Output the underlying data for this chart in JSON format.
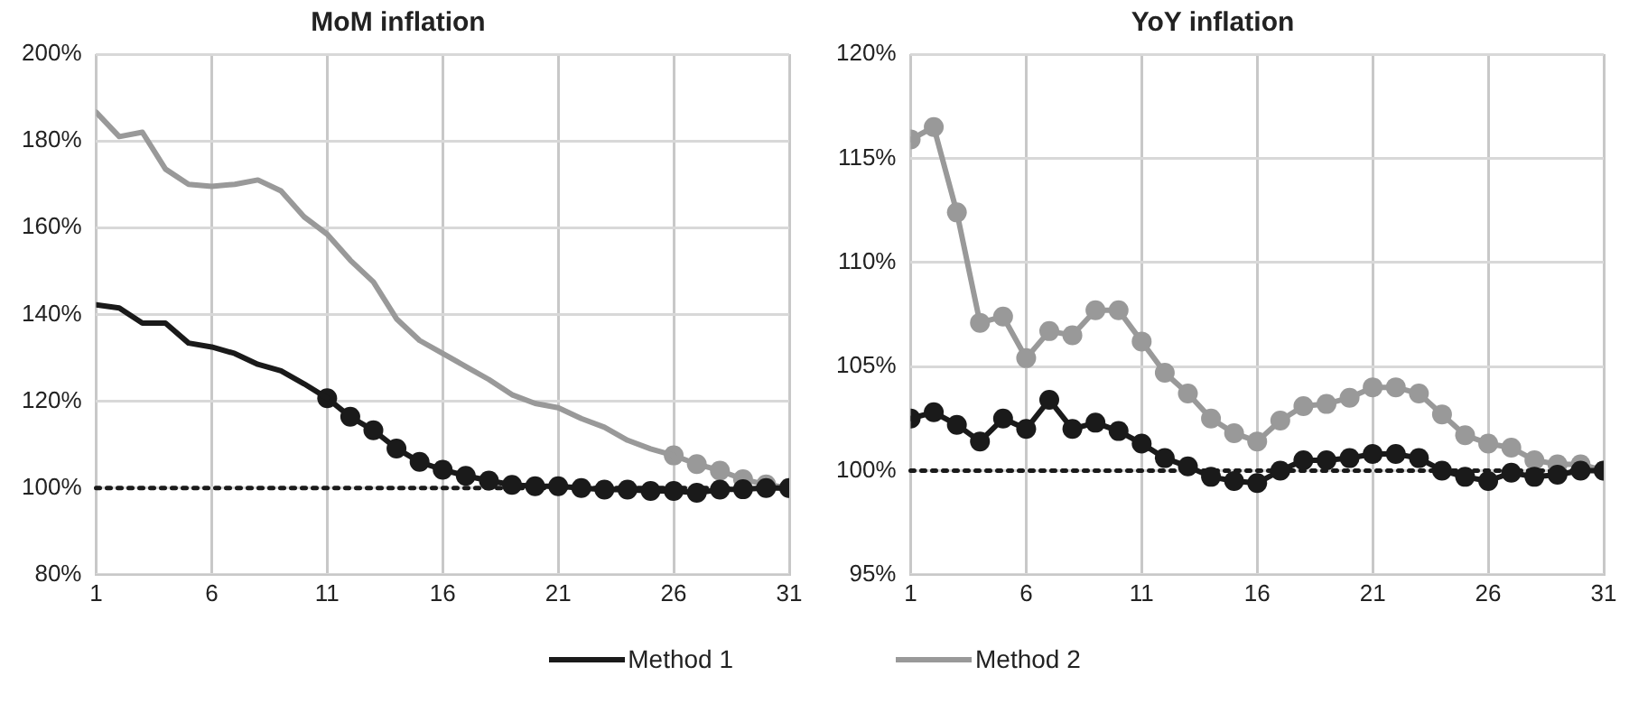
{
  "chart_data": [
    {
      "type": "line",
      "title": "MoM inflation",
      "x": [
        1,
        2,
        3,
        4,
        5,
        6,
        7,
        8,
        9,
        10,
        11,
        12,
        13,
        14,
        15,
        16,
        17,
        18,
        19,
        20,
        21,
        22,
        23,
        24,
        25,
        26,
        27,
        28,
        29,
        30,
        31
      ],
      "xlim": [
        1,
        31
      ],
      "xticks": [
        1,
        6,
        11,
        16,
        21,
        26,
        31
      ],
      "ylim": [
        80,
        200
      ],
      "yticks": [
        {
          "value": 80,
          "label": "80%"
        },
        {
          "value": 100,
          "label": "100%"
        },
        {
          "value": 120,
          "label": "120%"
        },
        {
          "value": 140,
          "label": "140%"
        },
        {
          "value": 160,
          "label": "160%"
        },
        {
          "value": 180,
          "label": "180%"
        },
        {
          "value": 200,
          "label": "200%"
        }
      ],
      "grid": true,
      "legend": "bottom",
      "line_style": "solid",
      "ref_lines": [
        {
          "axis": "y",
          "value": 100,
          "color": "#1a1a1a",
          "line_style": "dotted"
        }
      ],
      "series": [
        {
          "name": "Method 1",
          "color": "#1a1a1a",
          "marker": "none",
          "values": [
            142.2,
            141.5,
            138,
            138,
            133.4,
            132.5,
            131,
            128.5,
            127,
            124,
            120.7,
            null,
            null,
            null,
            null,
            null,
            null,
            null,
            null,
            null,
            null,
            null,
            null,
            null,
            null,
            null,
            null,
            null,
            null,
            null,
            null
          ]
        },
        {
          "color": "#1a1a1a",
          "marker": "circle",
          "values": [
            null,
            null,
            null,
            null,
            null,
            null,
            null,
            null,
            null,
            null,
            120.7,
            116.4,
            113.3,
            109.1,
            106,
            104.2,
            102.8,
            101.7,
            100.7,
            100.4,
            100.4,
            100,
            99.6,
            99.6,
            99.3,
            99.3,
            98.9,
            99.6,
            99.7,
            100,
            100
          ]
        },
        {
          "name": "Method 2",
          "color": "#999999",
          "marker": "none",
          "values": [
            186.6,
            181,
            182,
            173.5,
            170,
            169.5,
            170,
            171,
            168.5,
            162.5,
            158.5,
            152.5,
            147.5,
            139,
            134,
            131,
            128,
            125,
            121.5,
            119.5,
            118.5,
            116,
            114,
            111,
            109,
            107.5,
            null,
            null,
            null,
            null,
            null
          ]
        },
        {
          "color": "#999999",
          "marker": "circle",
          "values": [
            null,
            null,
            null,
            null,
            null,
            null,
            null,
            null,
            null,
            null,
            null,
            null,
            null,
            null,
            null,
            null,
            null,
            null,
            null,
            null,
            null,
            null,
            null,
            null,
            null,
            107.5,
            105.5,
            104,
            102,
            100.8,
            100
          ]
        }
      ]
    },
    {
      "type": "line",
      "title": "YoY inflation",
      "x": [
        1,
        2,
        3,
        4,
        5,
        6,
        7,
        8,
        9,
        10,
        11,
        12,
        13,
        14,
        15,
        16,
        17,
        18,
        19,
        20,
        21,
        22,
        23,
        24,
        25,
        26,
        27,
        28,
        29,
        30,
        31
      ],
      "xlim": [
        1,
        31
      ],
      "xticks": [
        1,
        6,
        11,
        16,
        21,
        26,
        31
      ],
      "ylim": [
        95,
        120
      ],
      "yticks": [
        {
          "value": 95,
          "label": "95%"
        },
        {
          "value": 100,
          "label": "100%"
        },
        {
          "value": 105,
          "label": "105%"
        },
        {
          "value": 110,
          "label": "110%"
        },
        {
          "value": 115,
          "label": "115%"
        },
        {
          "value": 120,
          "label": "120%"
        }
      ],
      "grid": true,
      "legend": "bottom",
      "line_style": "solid",
      "ref_lines": [
        {
          "axis": "y",
          "value": 100,
          "color": "#1a1a1a",
          "line_style": "dotted"
        }
      ],
      "series": [
        {
          "name": "Method 1",
          "color": "#1a1a1a",
          "marker": "circle",
          "values": [
            102.5,
            102.8,
            102.2,
            101.4,
            102.5,
            102,
            103.4,
            102,
            102.3,
            101.9,
            101.3,
            100.6,
            100.2,
            99.7,
            99.5,
            99.4,
            100,
            100.5,
            100.5,
            100.6,
            100.8,
            100.8,
            100.6,
            100,
            99.7,
            99.5,
            99.9,
            99.7,
            99.8,
            100,
            100
          ]
        },
        {
          "name": "Method 2",
          "color": "#999999",
          "marker": "circle",
          "values": [
            115.9,
            116.5,
            112.4,
            107.1,
            107.4,
            105.4,
            106.7,
            106.5,
            107.7,
            107.7,
            106.2,
            104.7,
            103.7,
            102.5,
            101.8,
            101.4,
            102.4,
            103.1,
            103.2,
            103.5,
            104,
            104,
            103.7,
            102.7,
            101.7,
            101.3,
            101.1,
            100.5,
            100.3,
            100.3,
            100
          ]
        }
      ]
    }
  ]
}
